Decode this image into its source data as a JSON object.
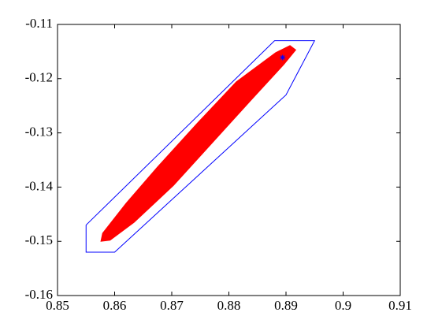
{
  "chart_data": {
    "type": "scatter",
    "xlim": [
      0.85,
      0.91
    ],
    "xticks": [
      0.85,
      0.86,
      0.87,
      0.88,
      0.89,
      0.9,
      0.91
    ],
    "ylim": [
      -0.16,
      -0.11
    ],
    "yticks": [
      -0.16,
      -0.15,
      -0.14,
      -0.13,
      -0.12,
      -0.11
    ],
    "series": [
      {
        "style": "fill",
        "color": "#ff0000",
        "x": [
          0.8579,
          0.862,
          0.8675,
          0.8744,
          0.8813,
          0.8882,
          0.8907,
          0.8917,
          0.8896,
          0.8841,
          0.8772,
          0.8703,
          0.8634,
          0.8592,
          0.8576
        ],
        "y": [
          -0.1485,
          -0.143,
          -0.1363,
          -0.1283,
          -0.1206,
          -0.1152,
          -0.1139,
          -0.1147,
          -0.1174,
          -0.1237,
          -0.1317,
          -0.1397,
          -0.1465,
          -0.1498,
          -0.15
        ]
      },
      {
        "style": "polygon",
        "color": "#0000ff",
        "x": [
          0.855,
          0.855,
          0.86,
          0.89,
          0.895,
          0.888
        ],
        "y": [
          -0.147,
          -0.152,
          -0.152,
          -0.123,
          -0.113,
          -0.113
        ]
      },
      {
        "style": "star",
        "color": "#0000ff",
        "x": [
          0.8894
        ],
        "y": [
          -0.1161
        ]
      }
    ]
  }
}
